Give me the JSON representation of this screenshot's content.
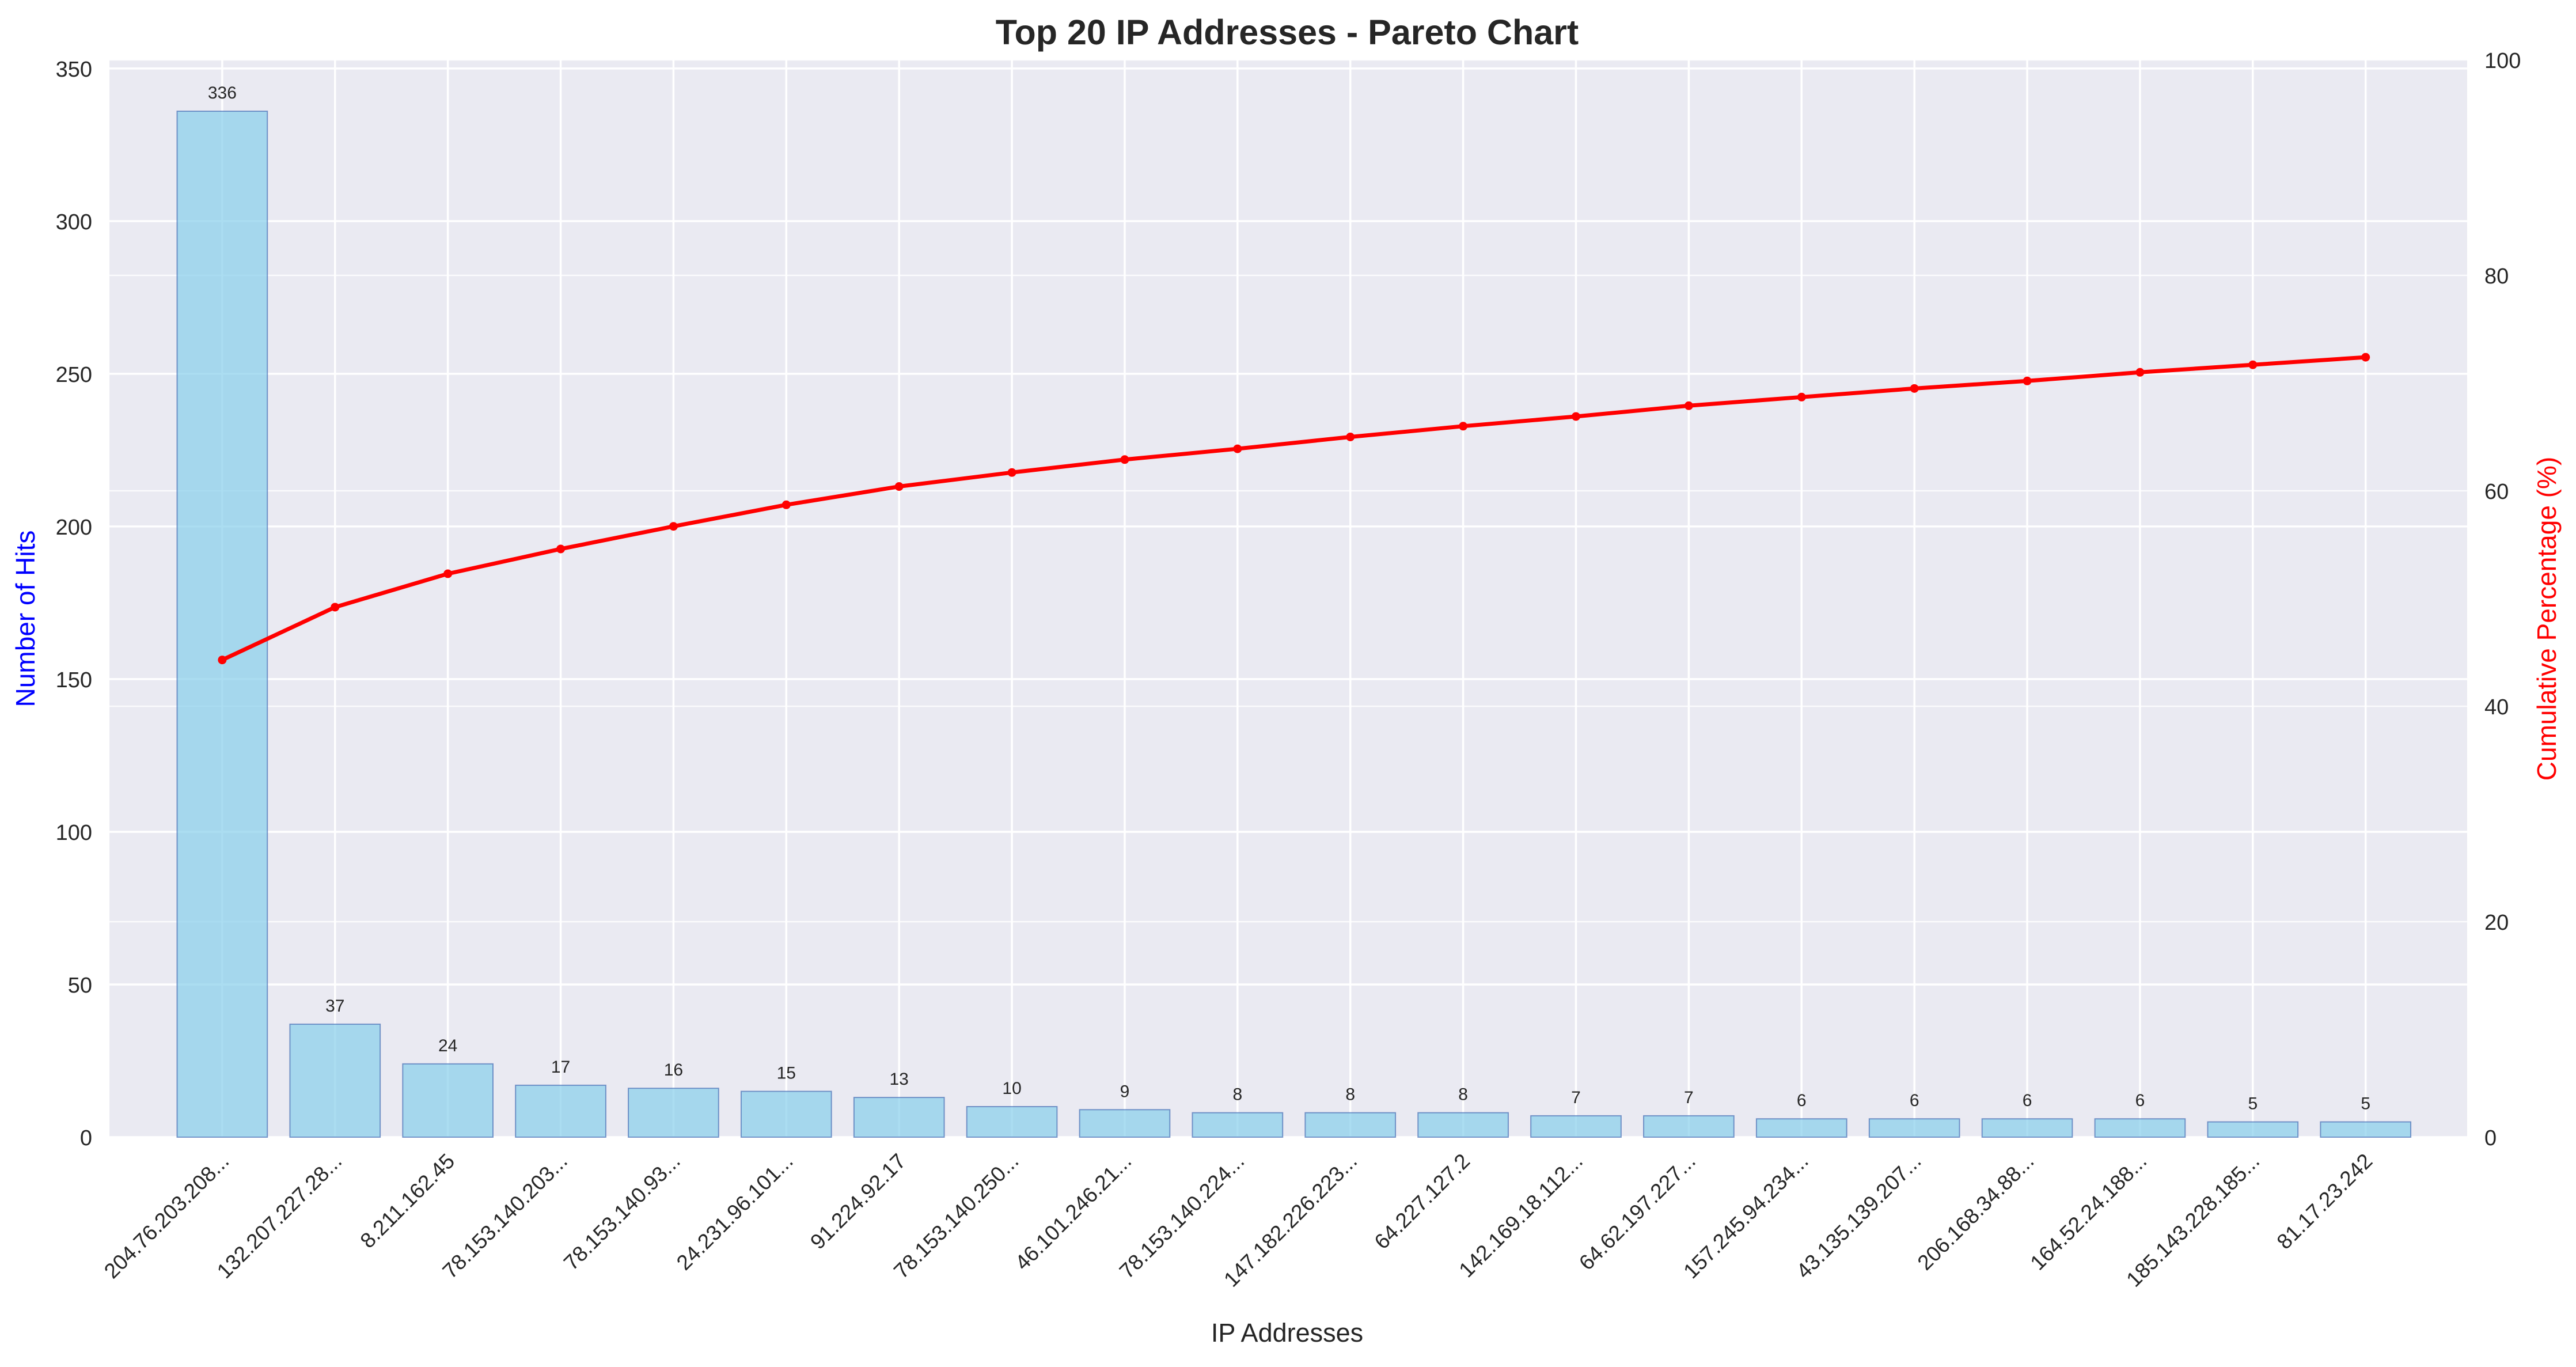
{
  "chart_data": {
    "type": "bar",
    "title": "Top 20 IP Addresses - Pareto Chart",
    "xlabel": "IP Addresses",
    "ylabel": "Number of Hits",
    "y2label": "Cumulative Percentage (%)",
    "ylim": [
      0,
      352.8
    ],
    "y2lim": [
      0,
      100
    ],
    "yticks": [
      0,
      50,
      100,
      150,
      200,
      250,
      300,
      350
    ],
    "y2ticks": [
      0,
      20,
      40,
      60,
      80,
      100
    ],
    "grid": true,
    "categories": [
      "204.76.203.208...",
      "132.207.227.28...",
      "8.211.162.45",
      "78.153.140.203...",
      "78.153.140.93...",
      "24.231.96.101...",
      "91.224.92.17",
      "78.153.140.250...",
      "46.101.246.21...",
      "78.153.140.224...",
      "147.182.226.223...",
      "64.227.127.2",
      "142.169.18.112...",
      "64.62.197.227...",
      "157.245.94.234...",
      "43.135.139.207...",
      "206.168.34.88...",
      "164.52.24.188...",
      "185.143.228.185...",
      "81.17.23.242"
    ],
    "series": [
      {
        "type": "bar",
        "axis": "left",
        "color": "#87CEEB",
        "edge_color": "#4a6fb5",
        "values": [
          336,
          37,
          24,
          17,
          16,
          15,
          13,
          10,
          9,
          8,
          8,
          8,
          7,
          7,
          6,
          6,
          6,
          6,
          5,
          5
        ],
        "labels": [
          "336",
          "37",
          "24",
          "17",
          "16",
          "15",
          "13",
          "10",
          "9",
          "8",
          "8",
          "8",
          "7",
          "7",
          "6",
          "6",
          "6",
          "6",
          "5",
          "5"
        ]
      },
      {
        "type": "line",
        "axis": "right",
        "color": "#ff0000",
        "marker": "circle",
        "values": [
          44.3,
          49.2,
          52.3,
          54.6,
          56.7,
          58.7,
          60.4,
          61.7,
          62.9,
          63.9,
          65.0,
          66.0,
          66.9,
          67.9,
          68.7,
          69.5,
          70.2,
          71.0,
          71.7,
          72.4
        ]
      }
    ],
    "colors": {
      "plot_bg": "#EAEAF2",
      "grid": "#ffffff",
      "left_axis_label": "#0000ff",
      "right_axis_label": "#ff0000",
      "text": "#262626",
      "title": "#262626"
    }
  }
}
